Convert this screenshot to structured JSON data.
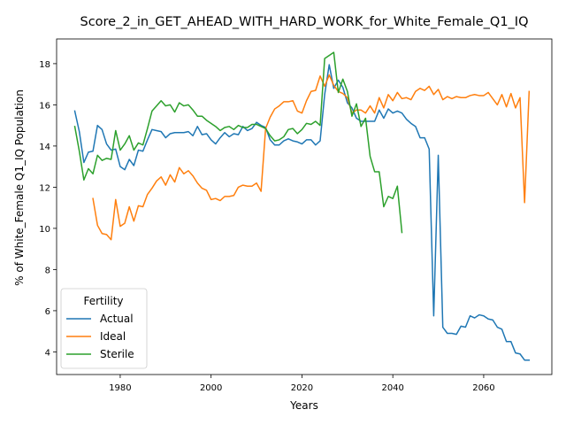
{
  "chart_data": {
    "type": "line",
    "title": "Score_2_in_GET_AHEAD_WITH_HARD_WORK_for_White_Female_Q1_IQ",
    "xlabel": "Years",
    "ylabel": "% of White_Female Q1_IQ Population",
    "xlim": [
      1966,
      2075
    ],
    "ylim": [
      2.9,
      19.2
    ],
    "xticks": [
      1980,
      2000,
      2020,
      2040,
      2060
    ],
    "yticks": [
      4,
      6,
      8,
      10,
      12,
      14,
      16,
      18
    ],
    "legend": {
      "title": "Fertility",
      "position": "lower-left"
    },
    "series": [
      {
        "name": "Actual",
        "color": "#1f77b4",
        "points": [
          [
            1970,
            15.7
          ],
          [
            1971,
            14.7
          ],
          [
            1972,
            13.2
          ],
          [
            1973,
            13.7
          ],
          [
            1974,
            13.75
          ],
          [
            1975,
            15.0
          ],
          [
            1976,
            14.8
          ],
          [
            1977,
            14.1
          ],
          [
            1978,
            13.8
          ],
          [
            1979,
            13.85
          ],
          [
            1980,
            13.0
          ],
          [
            1981,
            12.85
          ],
          [
            1982,
            13.35
          ],
          [
            1983,
            13.05
          ],
          [
            1984,
            13.8
          ],
          [
            1985,
            13.75
          ],
          [
            1986,
            14.3
          ],
          [
            1987,
            14.8
          ],
          [
            1988,
            14.75
          ],
          [
            1989,
            14.7
          ],
          [
            1990,
            14.4
          ],
          [
            1991,
            14.6
          ],
          [
            1992,
            14.65
          ],
          [
            1993,
            14.65
          ],
          [
            1994,
            14.65
          ],
          [
            1995,
            14.7
          ],
          [
            1996,
            14.5
          ],
          [
            1997,
            14.95
          ],
          [
            1998,
            14.55
          ],
          [
            1999,
            14.6
          ],
          [
            2000,
            14.3
          ],
          [
            2001,
            14.1
          ],
          [
            2002,
            14.4
          ],
          [
            2003,
            14.65
          ],
          [
            2004,
            14.45
          ],
          [
            2005,
            14.6
          ],
          [
            2006,
            14.55
          ],
          [
            2007,
            14.95
          ],
          [
            2008,
            14.75
          ],
          [
            2009,
            14.85
          ],
          [
            2010,
            15.15
          ],
          [
            2011,
            15.0
          ],
          [
            2012,
            14.9
          ],
          [
            2013,
            14.3
          ],
          [
            2014,
            14.05
          ],
          [
            2015,
            14.05
          ],
          [
            2016,
            14.25
          ],
          [
            2017,
            14.35
          ],
          [
            2018,
            14.25
          ],
          [
            2019,
            14.2
          ],
          [
            2020,
            14.1
          ],
          [
            2021,
            14.3
          ],
          [
            2022,
            14.3
          ],
          [
            2023,
            14.05
          ],
          [
            2024,
            14.25
          ],
          [
            2025,
            16.5
          ],
          [
            2026,
            17.95
          ],
          [
            2027,
            16.8
          ],
          [
            2028,
            17.2
          ],
          [
            2029,
            16.85
          ],
          [
            2030,
            16.1
          ],
          [
            2031,
            15.85
          ],
          [
            2032,
            15.35
          ],
          [
            2033,
            15.2
          ],
          [
            2034,
            15.2
          ],
          [
            2035,
            15.2
          ],
          [
            2036,
            15.2
          ],
          [
            2037,
            15.75
          ],
          [
            2038,
            15.35
          ],
          [
            2039,
            15.8
          ],
          [
            2040,
            15.6
          ],
          [
            2041,
            15.7
          ],
          [
            2042,
            15.6
          ],
          [
            2043,
            15.3
          ],
          [
            2044,
            15.1
          ],
          [
            2045,
            14.95
          ],
          [
            2046,
            14.4
          ],
          [
            2047,
            14.4
          ],
          [
            2048,
            13.85
          ],
          [
            2049,
            5.75
          ],
          [
            2050,
            13.55
          ],
          [
            2051,
            5.2
          ],
          [
            2052,
            4.9
          ],
          [
            2053,
            4.9
          ],
          [
            2054,
            4.85
          ],
          [
            2055,
            5.25
          ],
          [
            2056,
            5.2
          ],
          [
            2057,
            5.75
          ],
          [
            2058,
            5.65
          ],
          [
            2059,
            5.8
          ],
          [
            2060,
            5.75
          ],
          [
            2061,
            5.6
          ],
          [
            2062,
            5.55
          ],
          [
            2063,
            5.2
          ],
          [
            2064,
            5.1
          ],
          [
            2065,
            4.5
          ],
          [
            2066,
            4.5
          ],
          [
            2067,
            3.95
          ],
          [
            2068,
            3.9
          ],
          [
            2069,
            3.6
          ],
          [
            2070,
            3.6
          ]
        ]
      },
      {
        "name": "Ideal",
        "color": "#ff7f0e",
        "points": [
          [
            1974,
            11.45
          ],
          [
            1975,
            10.15
          ],
          [
            1976,
            9.75
          ],
          [
            1977,
            9.7
          ],
          [
            1978,
            9.45
          ],
          [
            1979,
            11.4
          ],
          [
            1980,
            10.1
          ],
          [
            1981,
            10.25
          ],
          [
            1982,
            11.05
          ],
          [
            1983,
            10.35
          ],
          [
            1984,
            11.1
          ],
          [
            1985,
            11.05
          ],
          [
            1986,
            11.65
          ],
          [
            1987,
            11.95
          ],
          [
            1988,
            12.3
          ],
          [
            1989,
            12.5
          ],
          [
            1990,
            12.1
          ],
          [
            1991,
            12.6
          ],
          [
            1992,
            12.25
          ],
          [
            1993,
            12.95
          ],
          [
            1994,
            12.65
          ],
          [
            1995,
            12.8
          ],
          [
            1996,
            12.55
          ],
          [
            1997,
            12.2
          ],
          [
            1998,
            11.95
          ],
          [
            1999,
            11.85
          ],
          [
            2000,
            11.4
          ],
          [
            2001,
            11.45
          ],
          [
            2002,
            11.35
          ],
          [
            2003,
            11.55
          ],
          [
            2004,
            11.55
          ],
          [
            2005,
            11.6
          ],
          [
            2006,
            12.0
          ],
          [
            2007,
            12.1
          ],
          [
            2008,
            12.05
          ],
          [
            2009,
            12.05
          ],
          [
            2010,
            12.2
          ],
          [
            2011,
            11.8
          ],
          [
            2012,
            14.85
          ],
          [
            2013,
            15.4
          ],
          [
            2014,
            15.8
          ],
          [
            2015,
            15.95
          ],
          [
            2016,
            16.15
          ],
          [
            2017,
            16.15
          ],
          [
            2018,
            16.2
          ],
          [
            2019,
            15.7
          ],
          [
            2020,
            15.6
          ],
          [
            2021,
            16.2
          ],
          [
            2022,
            16.65
          ],
          [
            2023,
            16.7
          ],
          [
            2024,
            17.4
          ],
          [
            2025,
            16.9
          ],
          [
            2026,
            17.45
          ],
          [
            2027,
            16.95
          ],
          [
            2028,
            16.65
          ],
          [
            2029,
            16.55
          ],
          [
            2030,
            16.35
          ],
          [
            2031,
            15.6
          ],
          [
            2032,
            15.75
          ],
          [
            2033,
            15.75
          ],
          [
            2034,
            15.6
          ],
          [
            2035,
            15.95
          ],
          [
            2036,
            15.6
          ],
          [
            2037,
            16.35
          ],
          [
            2038,
            15.85
          ],
          [
            2039,
            16.5
          ],
          [
            2040,
            16.2
          ],
          [
            2041,
            16.6
          ],
          [
            2042,
            16.3
          ],
          [
            2043,
            16.35
          ],
          [
            2044,
            16.25
          ],
          [
            2045,
            16.65
          ],
          [
            2046,
            16.8
          ],
          [
            2047,
            16.7
          ],
          [
            2048,
            16.9
          ],
          [
            2049,
            16.5
          ],
          [
            2050,
            16.75
          ],
          [
            2051,
            16.25
          ],
          [
            2052,
            16.4
          ],
          [
            2053,
            16.3
          ],
          [
            2054,
            16.4
          ],
          [
            2055,
            16.35
          ],
          [
            2056,
            16.35
          ],
          [
            2057,
            16.45
          ],
          [
            2058,
            16.5
          ],
          [
            2059,
            16.45
          ],
          [
            2060,
            16.45
          ],
          [
            2061,
            16.6
          ],
          [
            2062,
            16.3
          ],
          [
            2063,
            16.0
          ],
          [
            2064,
            16.5
          ],
          [
            2065,
            15.9
          ],
          [
            2066,
            16.55
          ],
          [
            2067,
            15.85
          ],
          [
            2068,
            16.35
          ],
          [
            2069,
            11.25
          ],
          [
            2070,
            16.65
          ]
        ]
      },
      {
        "name": "Sterile",
        "color": "#2ca02c",
        "points": [
          [
            1970,
            14.95
          ],
          [
            1971,
            13.75
          ],
          [
            1972,
            12.35
          ],
          [
            1973,
            12.9
          ],
          [
            1974,
            12.65
          ],
          [
            1975,
            13.55
          ],
          [
            1976,
            13.3
          ],
          [
            1977,
            13.4
          ],
          [
            1978,
            13.35
          ],
          [
            1979,
            14.75
          ],
          [
            1980,
            13.8
          ],
          [
            1981,
            14.1
          ],
          [
            1982,
            14.5
          ],
          [
            1983,
            13.8
          ],
          [
            1984,
            14.15
          ],
          [
            1985,
            14.05
          ],
          [
            1986,
            14.85
          ],
          [
            1987,
            15.7
          ],
          [
            1988,
            15.95
          ],
          [
            1989,
            16.2
          ],
          [
            1990,
            15.95
          ],
          [
            1991,
            16.0
          ],
          [
            1992,
            15.65
          ],
          [
            1993,
            16.1
          ],
          [
            1994,
            15.95
          ],
          [
            1995,
            16.0
          ],
          [
            1996,
            15.75
          ],
          [
            1997,
            15.45
          ],
          [
            1998,
            15.45
          ],
          [
            1999,
            15.25
          ],
          [
            2000,
            15.1
          ],
          [
            2001,
            14.95
          ],
          [
            2002,
            14.75
          ],
          [
            2003,
            14.9
          ],
          [
            2004,
            14.95
          ],
          [
            2005,
            14.8
          ],
          [
            2006,
            15.0
          ],
          [
            2007,
            14.9
          ],
          [
            2008,
            14.9
          ],
          [
            2009,
            15.05
          ],
          [
            2010,
            15.05
          ],
          [
            2011,
            14.95
          ],
          [
            2012,
            14.85
          ],
          [
            2013,
            14.5
          ],
          [
            2014,
            14.25
          ],
          [
            2015,
            14.3
          ],
          [
            2016,
            14.45
          ],
          [
            2017,
            14.8
          ],
          [
            2018,
            14.85
          ],
          [
            2019,
            14.6
          ],
          [
            2020,
            14.8
          ],
          [
            2021,
            15.1
          ],
          [
            2022,
            15.05
          ],
          [
            2023,
            15.2
          ],
          [
            2024,
            15.0
          ],
          [
            2025,
            18.25
          ],
          [
            2026,
            18.4
          ],
          [
            2027,
            18.55
          ],
          [
            2028,
            16.6
          ],
          [
            2029,
            17.25
          ],
          [
            2030,
            16.65
          ],
          [
            2031,
            15.45
          ],
          [
            2032,
            16.05
          ],
          [
            2033,
            14.95
          ],
          [
            2034,
            15.35
          ],
          [
            2035,
            13.5
          ],
          [
            2036,
            12.75
          ],
          [
            2037,
            12.75
          ],
          [
            2038,
            11.05
          ],
          [
            2039,
            11.55
          ],
          [
            2040,
            11.45
          ],
          [
            2041,
            12.05
          ],
          [
            2042,
            9.8
          ]
        ]
      }
    ]
  }
}
